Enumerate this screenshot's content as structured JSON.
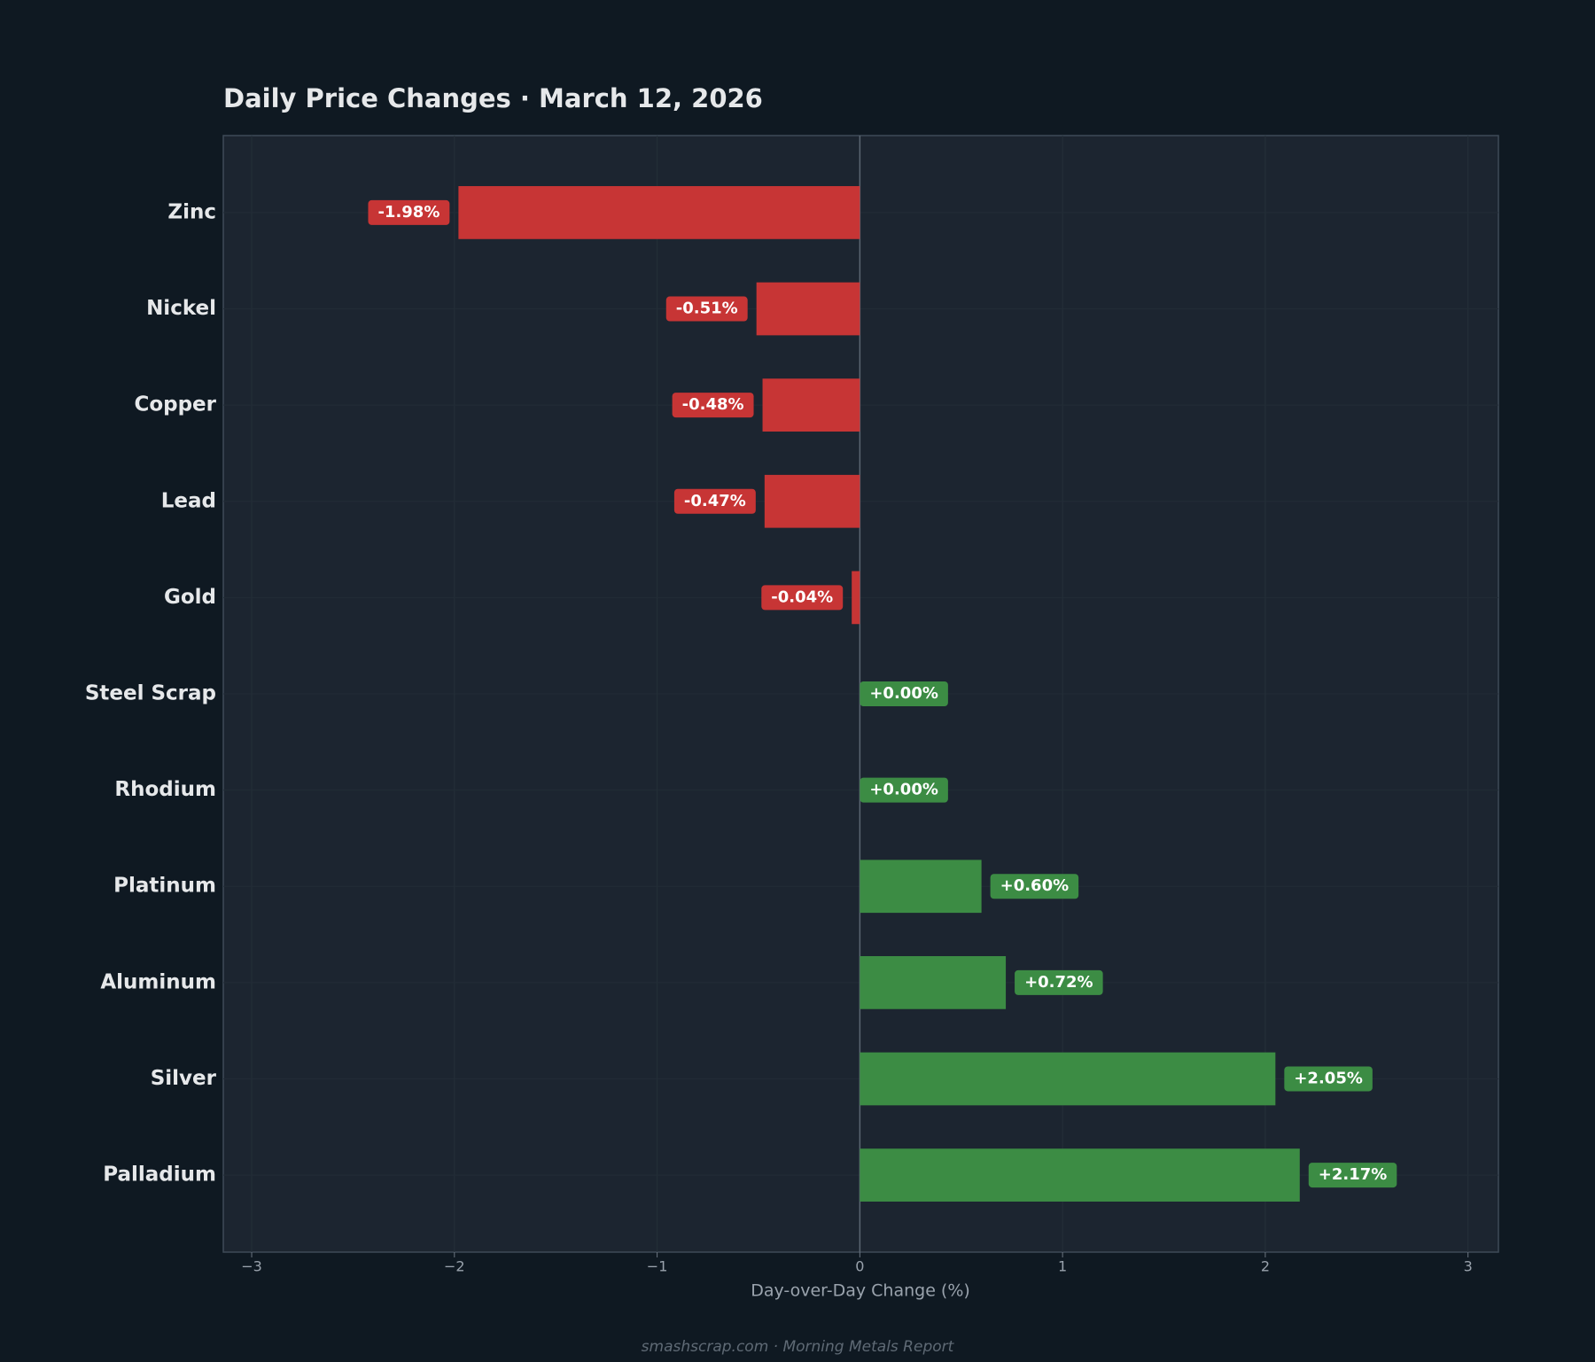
{
  "chart_data": {
    "type": "barh",
    "title": "Daily Price Changes  ·  March 12, 2026",
    "xlabel": "Day-over-Day Change (%)",
    "footer": "smashscrap.com  ·  Morning Metals Report",
    "categories": [
      "Zinc",
      "Nickel",
      "Copper",
      "Lead",
      "Gold",
      "Steel Scrap",
      "Rhodium",
      "Platinum",
      "Aluminum",
      "Silver",
      "Palladium"
    ],
    "values": [
      -1.98,
      -0.51,
      -0.48,
      -0.47,
      -0.04,
      0.0,
      0.0,
      0.6,
      0.72,
      2.05,
      2.17
    ],
    "value_labels": [
      "-1.98%",
      "-0.51%",
      "-0.48%",
      "-0.47%",
      "-0.04%",
      "+0.00%",
      "+0.00%",
      "+0.60%",
      "+0.72%",
      "+2.05%",
      "+2.17%"
    ],
    "negative_color": "#c73535",
    "positive_color": "#3c8c44",
    "xlim": [
      -3.14,
      3.15
    ],
    "xticks": [
      {
        "value": -3,
        "label": "−3"
      },
      {
        "value": -2,
        "label": "−2"
      },
      {
        "value": -1,
        "label": "−1"
      },
      0,
      1,
      2,
      3
    ],
    "grid": true
  }
}
